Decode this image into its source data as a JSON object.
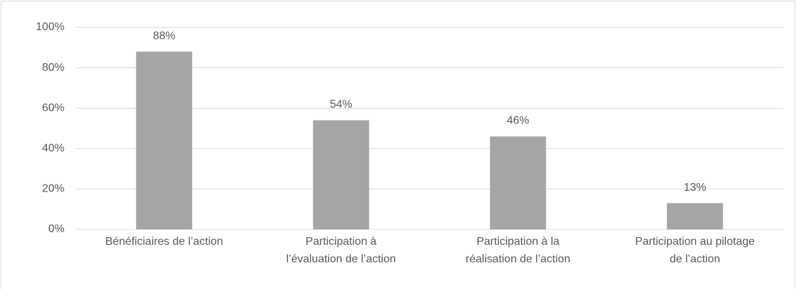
{
  "chart_data": {
    "type": "bar",
    "categories": [
      "Bénéficiaires de l’action",
      "Participation à\nl’évaluation de l’action",
      "Participation à la\nréalisation de l’action",
      "Participation au pilotage\nde l’action"
    ],
    "values": [
      88,
      54,
      46,
      13
    ],
    "value_labels": [
      "88%",
      "54%",
      "46%",
      "13%"
    ],
    "color": "#a5a5a5",
    "ylim": [
      0,
      100
    ],
    "yticks": [
      {
        "value": 0,
        "label": "0%"
      },
      {
        "value": 20,
        "label": "20%"
      },
      {
        "value": 40,
        "label": "40%"
      },
      {
        "value": 60,
        "label": "60%"
      },
      {
        "value": 80,
        "label": "80%"
      },
      {
        "value": 100,
        "label": "100%"
      }
    ],
    "grid": true
  }
}
